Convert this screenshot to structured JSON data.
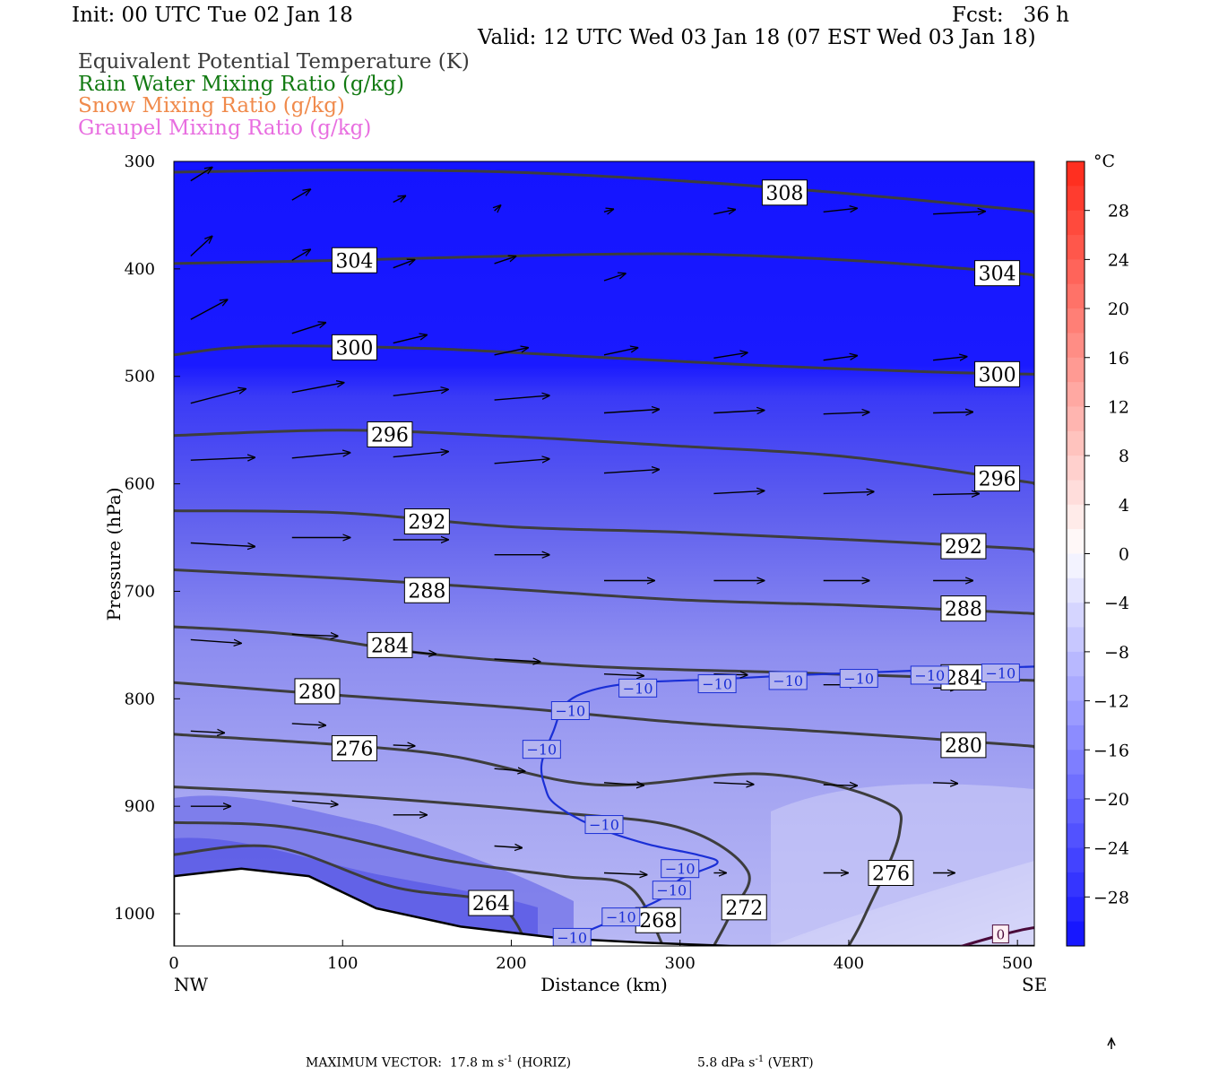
{
  "header": {
    "init": "Init: 00 UTC Tue 02 Jan 18",
    "fcst": "Fcst:   36 h",
    "valid": "Valid: 12 UTC Wed 03 Jan 18 (07 EST Wed 03 Jan 18)"
  },
  "legend": {
    "equiv_pot_temp": "Equivalent Potential Temperature (K)",
    "rain": "Rain Water Mixing Ratio (g/kg)",
    "snow": "Snow Mixing Ratio (g/kg)",
    "graupel": "Graupel Mixing Ratio (g/kg)"
  },
  "footer": {
    "max_vector_horiz": "MAXIMUM VECTOR:  17.8 m s",
    "horiz_unit_tail": " (HORIZ)",
    "max_vector_vert": "5.8 dPa s",
    "vert_unit_tail": " (VERT)",
    "exp": "-1"
  },
  "colors": {
    "theta_e_contour": "#3d3d3d",
    "isotherm_minus10": "#1a2fd6",
    "colorbar_cold": "#1a1aff",
    "colorbar_warm": "#ff2a1a"
  },
  "chart_data": {
    "type": "heatmap",
    "xlabel": "Distance (km)",
    "ylabel": "Pressure (hPa)",
    "x_ticks": [
      0,
      100,
      200,
      300,
      400,
      500
    ],
    "y_ticks": [
      300,
      400,
      500,
      600,
      700,
      800,
      900,
      1000
    ],
    "xlim": [
      0,
      510
    ],
    "ylim": [
      300,
      1030
    ],
    "y_inverted": true,
    "x_end_labels": {
      "left": "NW",
      "right": "SE"
    },
    "colorbar": {
      "unit": "°C",
      "ticks": [
        28,
        24,
        20,
        16,
        12,
        8,
        4,
        0,
        -4,
        -8,
        -12,
        -16,
        -20,
        -24,
        -28
      ]
    },
    "theta_e_contours": [
      {
        "value": 308,
        "points": [
          [
            0,
            310
          ],
          [
            100,
            308
          ],
          [
            200,
            310
          ],
          [
            300,
            318
          ],
          [
            400,
            330
          ],
          [
            500,
            345
          ],
          [
            510,
            348
          ]
        ]
      },
      {
        "value": 304,
        "points": [
          [
            0,
            395
          ],
          [
            100,
            392
          ],
          [
            200,
            388
          ],
          [
            300,
            386
          ],
          [
            400,
            392
          ],
          [
            500,
            404
          ],
          [
            510,
            408
          ]
        ]
      },
      {
        "value": 300,
        "points": [
          [
            0,
            480
          ],
          [
            50,
            472
          ],
          [
            150,
            474
          ],
          [
            250,
            482
          ],
          [
            350,
            490
          ],
          [
            450,
            496
          ],
          [
            510,
            498
          ]
        ]
      },
      {
        "value": 296,
        "points": [
          [
            0,
            555
          ],
          [
            100,
            550
          ],
          [
            200,
            556
          ],
          [
            300,
            565
          ],
          [
            400,
            575
          ],
          [
            500,
            597
          ],
          [
            510,
            600
          ]
        ]
      },
      {
        "value": 292,
        "points": [
          [
            0,
            625
          ],
          [
            100,
            627
          ],
          [
            200,
            640
          ],
          [
            300,
            645
          ],
          [
            400,
            652
          ],
          [
            500,
            660
          ],
          [
            510,
            663
          ]
        ]
      },
      {
        "value": 288,
        "points": [
          [
            0,
            680
          ],
          [
            100,
            688
          ],
          [
            200,
            698
          ],
          [
            300,
            708
          ],
          [
            400,
            713
          ],
          [
            500,
            720
          ],
          [
            510,
            721
          ]
        ]
      },
      {
        "value": 284,
        "points": [
          [
            0,
            733
          ],
          [
            70,
            740
          ],
          [
            150,
            758
          ],
          [
            250,
            770
          ],
          [
            350,
            775
          ],
          [
            450,
            780
          ],
          [
            510,
            783
          ]
        ]
      },
      {
        "value": 280,
        "points": [
          [
            0,
            785
          ],
          [
            100,
            797
          ],
          [
            200,
            808
          ],
          [
            300,
            822
          ],
          [
            400,
            832
          ],
          [
            500,
            843
          ],
          [
            510,
            845
          ]
        ]
      },
      {
        "value": 276,
        "points": [
          [
            0,
            833
          ],
          [
            150,
            850
          ],
          [
            250,
            880
          ],
          [
            350,
            870
          ],
          [
            420,
            895
          ],
          [
            430,
            925
          ],
          [
            410,
            1000
          ],
          [
            400,
            1030
          ]
        ]
      },
      {
        "value": 272,
        "points": [
          [
            0,
            882
          ],
          [
            100,
            890
          ],
          [
            220,
            905
          ],
          [
            300,
            920
          ],
          [
            340,
            960
          ],
          [
            330,
            1000
          ],
          [
            320,
            1030
          ]
        ]
      },
      {
        "value": 268,
        "points": [
          [
            0,
            915
          ],
          [
            70,
            920
          ],
          [
            160,
            950
          ],
          [
            230,
            965
          ],
          [
            270,
            975
          ],
          [
            290,
            1030
          ]
        ]
      },
      {
        "value": 264,
        "points": [
          [
            0,
            945
          ],
          [
            60,
            938
          ],
          [
            130,
            975
          ],
          [
            190,
            990
          ],
          [
            210,
            1030
          ]
        ]
      }
    ],
    "theta_e_labels": [
      {
        "value": 308,
        "x": 362,
        "p": 329
      },
      {
        "value": 304,
        "x": 107,
        "p": 392
      },
      {
        "value": 304,
        "x": 488,
        "p": 404
      },
      {
        "value": 300,
        "x": 107,
        "p": 473
      },
      {
        "value": 300,
        "x": 488,
        "p": 498
      },
      {
        "value": 296,
        "x": 128,
        "p": 554
      },
      {
        "value": 296,
        "x": 488,
        "p": 595
      },
      {
        "value": 292,
        "x": 150,
        "p": 635
      },
      {
        "value": 292,
        "x": 468,
        "p": 658
      },
      {
        "value": 288,
        "x": 150,
        "p": 699
      },
      {
        "value": 288,
        "x": 468,
        "p": 716
      },
      {
        "value": 284,
        "x": 128,
        "p": 750
      },
      {
        "value": 284,
        "x": 468,
        "p": 780
      },
      {
        "value": 280,
        "x": 85,
        "p": 793
      },
      {
        "value": 280,
        "x": 468,
        "p": 843
      },
      {
        "value": 276,
        "x": 107,
        "p": 846
      },
      {
        "value": 276,
        "x": 425,
        "p": 962
      },
      {
        "value": 272,
        "x": 338,
        "p": 994
      },
      {
        "value": 268,
        "x": 287,
        "p": 1006
      },
      {
        "value": 264,
        "x": 188,
        "p": 990
      }
    ],
    "isotherm_minus10": {
      "value": -10,
      "points": [
        [
          236,
          1022
        ],
        [
          265,
          1003
        ],
        [
          290,
          985
        ],
        [
          300,
          968
        ],
        [
          322,
          953
        ],
        [
          310,
          945
        ],
        [
          280,
          935
        ],
        [
          248,
          918
        ],
        [
          226,
          898
        ],
        [
          220,
          882
        ],
        [
          218,
          860
        ],
        [
          225,
          830
        ],
        [
          232,
          805
        ],
        [
          248,
          792
        ],
        [
          275,
          785
        ],
        [
          320,
          782
        ],
        [
          370,
          778
        ],
        [
          420,
          775
        ],
        [
          470,
          772
        ],
        [
          510,
          770
        ]
      ],
      "label_points": [
        [
          236,
          1022
        ],
        [
          265,
          1003
        ],
        [
          295,
          978
        ],
        [
          300,
          958
        ],
        [
          255,
          917
        ],
        [
          218,
          847
        ],
        [
          235,
          811
        ],
        [
          275,
          790
        ],
        [
          322,
          786
        ],
        [
          364,
          783
        ],
        [
          406,
          781
        ],
        [
          448,
          778
        ],
        [
          490,
          776
        ]
      ]
    },
    "temp_zero_label": {
      "value": 0,
      "x": 490,
      "p": 1018
    },
    "wind_vectors": [
      {
        "x": 10,
        "p": 318,
        "u": 14,
        "w": -15
      },
      {
        "x": 70,
        "p": 336,
        "u": 12,
        "w": -12
      },
      {
        "x": 130,
        "p": 338,
        "u": 8,
        "w": -7
      },
      {
        "x": 190,
        "p": 346,
        "u": 4,
        "w": -6
      },
      {
        "x": 255,
        "p": 347,
        "u": 6,
        "w": -3
      },
      {
        "x": 320,
        "p": 349,
        "u": 14,
        "w": -5
      },
      {
        "x": 385,
        "p": 347,
        "u": 22,
        "w": -4
      },
      {
        "x": 450,
        "p": 349,
        "u": 34,
        "w": -3
      },
      {
        "x": 10,
        "p": 388,
        "u": 14,
        "w": -22
      },
      {
        "x": 70,
        "p": 392,
        "u": 12,
        "w": -12
      },
      {
        "x": 130,
        "p": 399,
        "u": 14,
        "w": -9
      },
      {
        "x": 190,
        "p": 395,
        "u": 14,
        "w": -8
      },
      {
        "x": 255,
        "p": 411,
        "u": 14,
        "w": -8
      },
      {
        "x": 10,
        "p": 447,
        "u": 24,
        "w": -22
      },
      {
        "x": 70,
        "p": 460,
        "u": 22,
        "w": -12
      },
      {
        "x": 130,
        "p": 469,
        "u": 22,
        "w": -9
      },
      {
        "x": 190,
        "p": 480,
        "u": 22,
        "w": -8
      },
      {
        "x": 255,
        "p": 480,
        "u": 22,
        "w": -8
      },
      {
        "x": 320,
        "p": 483,
        "u": 22,
        "w": -6
      },
      {
        "x": 385,
        "p": 485,
        "u": 22,
        "w": -5
      },
      {
        "x": 450,
        "p": 485,
        "u": 22,
        "w": -4
      },
      {
        "x": 10,
        "p": 525,
        "u": 36,
        "w": -16
      },
      {
        "x": 70,
        "p": 515,
        "u": 34,
        "w": -11
      },
      {
        "x": 130,
        "p": 518,
        "u": 36,
        "w": -7
      },
      {
        "x": 190,
        "p": 522,
        "u": 36,
        "w": -5
      },
      {
        "x": 255,
        "p": 534,
        "u": 36,
        "w": -4
      },
      {
        "x": 320,
        "p": 534,
        "u": 33,
        "w": -3
      },
      {
        "x": 385,
        "p": 535,
        "u": 30,
        "w": -2
      },
      {
        "x": 450,
        "p": 534,
        "u": 26,
        "w": -1
      },
      {
        "x": 10,
        "p": 578,
        "u": 42,
        "w": -3
      },
      {
        "x": 70,
        "p": 576,
        "u": 38,
        "w": -6
      },
      {
        "x": 130,
        "p": 575,
        "u": 36,
        "w": -6
      },
      {
        "x": 190,
        "p": 581,
        "u": 36,
        "w": -5
      },
      {
        "x": 255,
        "p": 590,
        "u": 36,
        "w": -4
      },
      {
        "x": 320,
        "p": 609,
        "u": 33,
        "w": -3
      },
      {
        "x": 385,
        "p": 609,
        "u": 33,
        "w": -2
      },
      {
        "x": 450,
        "p": 610,
        "u": 30,
        "w": -1
      },
      {
        "x": 10,
        "p": 655,
        "u": 42,
        "w": 4
      },
      {
        "x": 70,
        "p": 650,
        "u": 38,
        "w": 0
      },
      {
        "x": 130,
        "p": 652,
        "u": 36,
        "w": 0
      },
      {
        "x": 190,
        "p": 666,
        "u": 36,
        "w": 0
      },
      {
        "x": 255,
        "p": 690,
        "u": 33,
        "w": 0
      },
      {
        "x": 320,
        "p": 690,
        "u": 33,
        "w": 0
      },
      {
        "x": 385,
        "p": 690,
        "u": 30,
        "w": 0
      },
      {
        "x": 450,
        "p": 690,
        "u": 26,
        "w": 0
      },
      {
        "x": 10,
        "p": 745,
        "u": 33,
        "w": 4
      },
      {
        "x": 70,
        "p": 740,
        "u": 30,
        "w": 2
      },
      {
        "x": 130,
        "p": 755,
        "u": 28,
        "w": 4
      },
      {
        "x": 190,
        "p": 763,
        "u": 30,
        "w": 3
      },
      {
        "x": 255,
        "p": 777,
        "u": 26,
        "w": 2
      },
      {
        "x": 320,
        "p": 777,
        "u": 22,
        "w": 1
      },
      {
        "x": 385,
        "p": 787,
        "u": 22,
        "w": 0
      },
      {
        "x": 450,
        "p": 790,
        "u": 16,
        "w": 0
      },
      {
        "x": 10,
        "p": 830,
        "u": 22,
        "w": 2
      },
      {
        "x": 70,
        "p": 823,
        "u": 22,
        "w": 2
      },
      {
        "x": 130,
        "p": 843,
        "u": 14,
        "w": 1
      },
      {
        "x": 190,
        "p": 865,
        "u": 20,
        "w": 3
      },
      {
        "x": 255,
        "p": 878,
        "u": 26,
        "w": 3
      },
      {
        "x": 320,
        "p": 878,
        "u": 26,
        "w": 2
      },
      {
        "x": 385,
        "p": 880,
        "u": 22,
        "w": 1
      },
      {
        "x": 450,
        "p": 878,
        "u": 16,
        "w": 1
      },
      {
        "x": 10,
        "p": 900,
        "u": 26,
        "w": 0
      },
      {
        "x": 70,
        "p": 895,
        "u": 30,
        "w": 4
      },
      {
        "x": 130,
        "p": 908,
        "u": 22,
        "w": 0
      },
      {
        "x": 190,
        "p": 937,
        "u": 18,
        "w": 2
      },
      {
        "x": 255,
        "p": 962,
        "u": 28,
        "w": 2
      },
      {
        "x": 320,
        "p": 962,
        "u": 8,
        "w": 0
      },
      {
        "x": 385,
        "p": 962,
        "u": 16,
        "w": 0
      },
      {
        "x": 450,
        "p": 962,
        "u": 14,
        "w": 0
      }
    ],
    "terrain_profile": [
      [
        0,
        965
      ],
      [
        40,
        958
      ],
      [
        80,
        965
      ],
      [
        120,
        995
      ],
      [
        170,
        1012
      ],
      [
        230,
        1023
      ],
      [
        280,
        1027
      ],
      [
        330,
        1030
      ],
      [
        510,
        1030
      ]
    ]
  }
}
